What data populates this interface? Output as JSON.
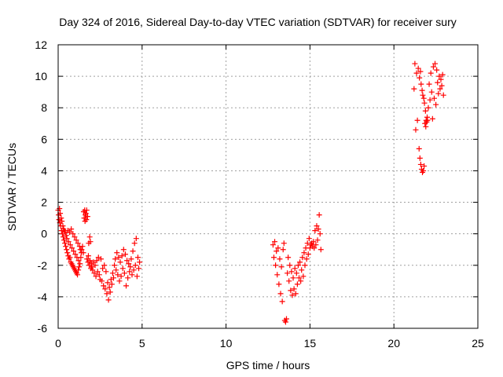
{
  "chart_data": {
    "type": "scatter",
    "title": "Day 324 of 2016, Sidereal Day-to-day VTEC variation (SDTVAR) for receiver sury",
    "xlabel": "GPS time / hours",
    "ylabel": "SDTVAR / TECUs",
    "xlim": [
      0,
      25
    ],
    "ylim": [
      -6,
      12
    ],
    "xticks": [
      "0",
      "5",
      "10",
      "15",
      "20",
      "25"
    ],
    "yticks": [
      "-6",
      "-4",
      "-2",
      "0",
      "2",
      "4",
      "6",
      "8",
      "10",
      "12"
    ],
    "xtick_values": [
      0,
      5,
      10,
      15,
      20,
      25
    ],
    "ytick_values": [
      -6,
      -4,
      -2,
      0,
      2,
      4,
      6,
      8,
      10,
      12
    ],
    "grid": true,
    "marker": "+",
    "color": "#ff0000",
    "series": [
      {
        "name": "SDTVAR",
        "points": [
          [
            0.0,
            1.5
          ],
          [
            0.03,
            1.2
          ],
          [
            0.05,
            0.9
          ],
          [
            0.08,
            1.6
          ],
          [
            0.1,
            0.7
          ],
          [
            0.12,
            1.3
          ],
          [
            0.15,
            0.5
          ],
          [
            0.18,
            1.0
          ],
          [
            0.2,
            0.2
          ],
          [
            0.22,
            0.8
          ],
          [
            0.25,
            0.0
          ],
          [
            0.28,
            0.5
          ],
          [
            0.3,
            -0.2
          ],
          [
            0.32,
            0.3
          ],
          [
            0.35,
            -0.4
          ],
          [
            0.38,
            0.2
          ],
          [
            0.4,
            -0.6
          ],
          [
            0.42,
            0.1
          ],
          [
            0.45,
            -0.8
          ],
          [
            0.48,
            -0.1
          ],
          [
            0.5,
            -1.0
          ],
          [
            0.52,
            -0.3
          ],
          [
            0.55,
            -1.2
          ],
          [
            0.58,
            0.2
          ],
          [
            0.6,
            -1.4
          ],
          [
            0.62,
            -0.5
          ],
          [
            0.65,
            -1.6
          ],
          [
            0.68,
            0.1
          ],
          [
            0.7,
            -1.5
          ],
          [
            0.72,
            -0.7
          ],
          [
            0.75,
            -1.8
          ],
          [
            0.78,
            0.3
          ],
          [
            0.8,
            -1.9
          ],
          [
            0.82,
            -0.9
          ],
          [
            0.85,
            -2.0
          ],
          [
            0.88,
            0.0
          ],
          [
            0.9,
            -2.1
          ],
          [
            0.92,
            -1.1
          ],
          [
            0.95,
            -2.2
          ],
          [
            0.98,
            -0.2
          ],
          [
            1.0,
            -2.3
          ],
          [
            1.02,
            -1.3
          ],
          [
            1.05,
            -2.4
          ],
          [
            1.08,
            -0.4
          ],
          [
            1.1,
            -2.5
          ],
          [
            1.12,
            -1.5
          ],
          [
            1.15,
            -2.6
          ],
          [
            1.18,
            -0.6
          ],
          [
            1.2,
            -2.3
          ],
          [
            1.22,
            -1.7
          ],
          [
            1.25,
            -2.1
          ],
          [
            1.28,
            -0.8
          ],
          [
            1.3,
            -1.9
          ],
          [
            1.32,
            -1.0
          ],
          [
            1.35,
            -1.5
          ],
          [
            1.38,
            -1.2
          ],
          [
            1.4,
            -1.0
          ],
          [
            1.45,
            -0.8
          ],
          [
            1.5,
            -1.2
          ],
          [
            1.52,
            1.4
          ],
          [
            1.55,
            1.0
          ],
          [
            1.58,
            1.5
          ],
          [
            1.6,
            0.8
          ],
          [
            1.62,
            1.2
          ],
          [
            1.65,
            1.3
          ],
          [
            1.68,
            0.9
          ],
          [
            1.7,
            1.5
          ],
          [
            1.72,
            -1.6
          ],
          [
            1.75,
            1.1
          ],
          [
            1.78,
            -1.8
          ],
          [
            1.8,
            -1.4
          ],
          [
            1.82,
            -0.6
          ],
          [
            1.85,
            -2.0
          ],
          [
            1.88,
            -0.2
          ],
          [
            1.9,
            -1.7
          ],
          [
            1.92,
            -0.5
          ],
          [
            1.95,
            -2.2
          ],
          [
            1.98,
            -1.9
          ],
          [
            2.0,
            -2.1
          ],
          [
            2.05,
            -2.3
          ],
          [
            2.1,
            -1.8
          ],
          [
            2.15,
            -2.5
          ],
          [
            2.2,
            -2.0
          ],
          [
            2.25,
            -2.7
          ],
          [
            2.3,
            -1.7
          ],
          [
            2.35,
            -2.4
          ],
          [
            2.4,
            -1.5
          ],
          [
            2.45,
            -2.6
          ],
          [
            2.5,
            -2.9
          ],
          [
            2.55,
            -1.6
          ],
          [
            2.6,
            -3.0
          ],
          [
            2.65,
            -2.2
          ],
          [
            2.7,
            -3.3
          ],
          [
            2.75,
            -2.0
          ],
          [
            2.8,
            -3.5
          ],
          [
            2.85,
            -2.4
          ],
          [
            2.9,
            -3.8
          ],
          [
            2.95,
            -3.1
          ],
          [
            3.0,
            -4.2
          ],
          [
            3.05,
            -3.4
          ],
          [
            3.1,
            -3.7
          ],
          [
            3.15,
            -2.9
          ],
          [
            3.2,
            -3.2
          ],
          [
            3.25,
            -2.5
          ],
          [
            3.3,
            -2.8
          ],
          [
            3.35,
            -2.0
          ],
          [
            3.4,
            -1.6
          ],
          [
            3.45,
            -2.3
          ],
          [
            3.5,
            -1.2
          ],
          [
            3.55,
            -2.6
          ],
          [
            3.6,
            -1.5
          ],
          [
            3.65,
            -3.0
          ],
          [
            3.7,
            -1.8
          ],
          [
            3.75,
            -2.7
          ],
          [
            3.8,
            -1.4
          ],
          [
            3.85,
            -2.2
          ],
          [
            3.9,
            -1.0
          ],
          [
            3.95,
            -2.5
          ],
          [
            4.0,
            -1.3
          ],
          [
            4.05,
            -3.3
          ],
          [
            4.1,
            -1.7
          ],
          [
            4.15,
            -2.8
          ],
          [
            4.2,
            -1.9
          ],
          [
            4.25,
            -2.4
          ],
          [
            4.3,
            -2.1
          ],
          [
            4.35,
            -1.6
          ],
          [
            4.4,
            -2.6
          ],
          [
            4.45,
            -1.1
          ],
          [
            4.5,
            -2.3
          ],
          [
            4.55,
            -0.6
          ],
          [
            4.6,
            -2.0
          ],
          [
            4.65,
            -0.3
          ],
          [
            4.7,
            -2.7
          ],
          [
            4.75,
            -1.5
          ],
          [
            4.8,
            -2.2
          ],
          [
            4.85,
            -1.8
          ],
          [
            12.8,
            -0.7
          ],
          [
            12.85,
            -1.5
          ],
          [
            12.9,
            -0.5
          ],
          [
            12.95,
            -2.0
          ],
          [
            13.0,
            -1.1
          ],
          [
            13.05,
            -2.6
          ],
          [
            13.1,
            -0.9
          ],
          [
            13.15,
            -3.2
          ],
          [
            13.2,
            -1.6
          ],
          [
            13.25,
            -3.8
          ],
          [
            13.3,
            -2.1
          ],
          [
            13.35,
            -4.3
          ],
          [
            13.4,
            -1.0
          ],
          [
            13.45,
            -0.6
          ],
          [
            13.5,
            -5.5
          ],
          [
            13.55,
            -5.6
          ],
          [
            13.6,
            -5.4
          ],
          [
            13.65,
            -2.5
          ],
          [
            13.7,
            -1.5
          ],
          [
            13.75,
            -3.0
          ],
          [
            13.8,
            -2.0
          ],
          [
            13.85,
            -3.6
          ],
          [
            13.9,
            -2.4
          ],
          [
            13.95,
            -3.9
          ],
          [
            14.0,
            -2.8
          ],
          [
            14.05,
            -3.5
          ],
          [
            14.1,
            -2.2
          ],
          [
            14.15,
            -3.8
          ],
          [
            14.2,
            -2.5
          ],
          [
            14.25,
            -3.2
          ],
          [
            14.3,
            -2.0
          ],
          [
            14.35,
            -2.8
          ],
          [
            14.4,
            -1.8
          ],
          [
            14.45,
            -3.0
          ],
          [
            14.5,
            -2.3
          ],
          [
            14.55,
            -1.5
          ],
          [
            14.6,
            -2.7
          ],
          [
            14.65,
            -1.2
          ],
          [
            14.7,
            -2.0
          ],
          [
            14.75,
            -0.9
          ],
          [
            14.8,
            -1.6
          ],
          [
            14.85,
            -0.6
          ],
          [
            14.9,
            -1.3
          ],
          [
            14.95,
            -0.3
          ],
          [
            15.0,
            -0.9
          ],
          [
            15.05,
            -0.7
          ],
          [
            15.1,
            -0.6
          ],
          [
            15.15,
            -0.8
          ],
          [
            15.2,
            -0.5
          ],
          [
            15.25,
            -0.9
          ],
          [
            15.3,
            0.2
          ],
          [
            15.35,
            -0.7
          ],
          [
            15.4,
            0.5
          ],
          [
            15.45,
            -0.4
          ],
          [
            15.5,
            0.3
          ],
          [
            15.55,
            1.2
          ],
          [
            15.6,
            0.0
          ],
          [
            15.65,
            -1.0
          ],
          [
            21.2,
            9.2
          ],
          [
            21.25,
            10.8
          ],
          [
            21.3,
            6.6
          ],
          [
            21.35,
            10.2
          ],
          [
            21.4,
            7.2
          ],
          [
            21.45,
            10.5
          ],
          [
            21.5,
            5.4
          ],
          [
            21.52,
            9.9
          ],
          [
            21.55,
            4.8
          ],
          [
            21.58,
            10.3
          ],
          [
            21.6,
            4.4
          ],
          [
            21.62,
            9.5
          ],
          [
            21.65,
            4.1
          ],
          [
            21.68,
            9.1
          ],
          [
            21.7,
            3.9
          ],
          [
            21.72,
            8.8
          ],
          [
            21.75,
            4.0
          ],
          [
            21.78,
            8.6
          ],
          [
            21.8,
            4.3
          ],
          [
            21.82,
            8.3
          ],
          [
            21.85,
            7.0
          ],
          [
            21.88,
            7.8
          ],
          [
            21.9,
            6.8
          ],
          [
            21.92,
            7.2
          ],
          [
            21.95,
            7.1
          ],
          [
            21.98,
            7.4
          ],
          [
            22.0,
            7.2
          ],
          [
            22.05,
            8.0
          ],
          [
            22.1,
            9.5
          ],
          [
            22.15,
            8.5
          ],
          [
            22.2,
            10.2
          ],
          [
            22.25,
            9.0
          ],
          [
            22.3,
            7.3
          ],
          [
            22.35,
            10.6
          ],
          [
            22.4,
            8.6
          ],
          [
            22.45,
            10.8
          ],
          [
            22.5,
            8.2
          ],
          [
            22.55,
            10.4
          ],
          [
            22.6,
            9.6
          ],
          [
            22.65,
            8.9
          ],
          [
            22.7,
            10.0
          ],
          [
            22.75,
            9.2
          ],
          [
            22.8,
            9.8
          ],
          [
            22.85,
            9.4
          ],
          [
            22.9,
            10.1
          ],
          [
            22.95,
            8.8
          ]
        ]
      }
    ]
  }
}
